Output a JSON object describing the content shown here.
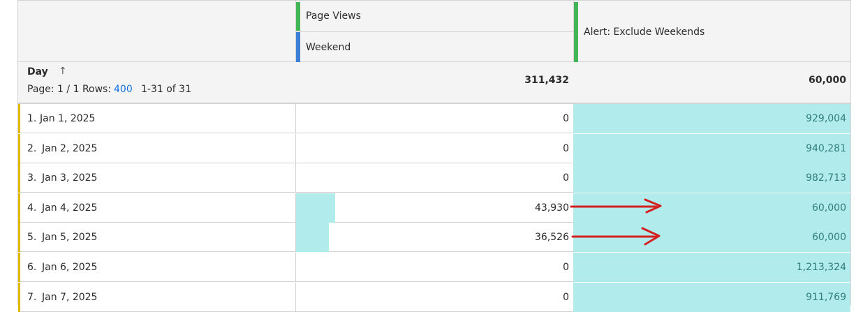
{
  "header": {
    "columns": [
      "Page Views",
      "Weekend",
      "Alert: Exclude Weekends"
    ]
  },
  "summary": {
    "dimension": "Day",
    "sort_icon": "↑",
    "page_label": "Page: 1 / 1 Rows:",
    "rows_value": "400",
    "range": "1-31 of 31",
    "totals": [
      "311,432",
      "60,000"
    ]
  },
  "table": {
    "rows": [
      [
        "1.",
        "Jan 1, 2025",
        "0",
        "929,004"
      ],
      [
        "2.",
        "Jan 2, 2025",
        "0",
        "940,281"
      ],
      [
        "3.",
        "Jan 3, 2025",
        "0",
        "982,713"
      ],
      [
        "4.",
        "Jan 4, 2025",
        "43,930",
        "60,000"
      ],
      [
        "5.",
        "Jan 5, 2025",
        "36,526",
        "60,000"
      ],
      [
        "6.",
        "Jan 6, 2025",
        "0",
        "1,213,324"
      ],
      [
        "7.",
        "Jan 7, 2025",
        "0",
        "911,769"
      ]
    ]
  }
}
